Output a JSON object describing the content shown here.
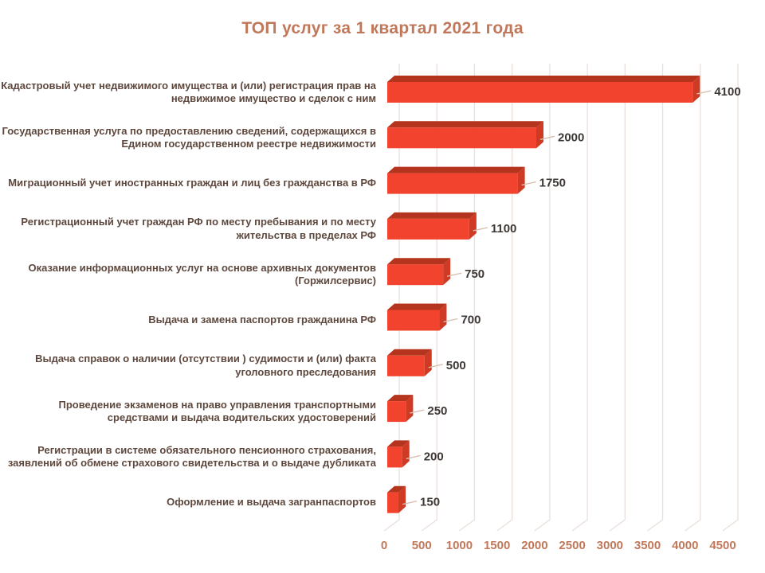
{
  "title": "ТОП услуг за 1 квартал 2021 года",
  "colors": {
    "background": "#ffffff",
    "title": "#c1785a",
    "category_label": "#5e483e",
    "value_label": "#3d3835",
    "axis_label": "#c1785a",
    "gridline": "#e9e0dc",
    "leader_line": "#d8c0b2",
    "bar_front": "#f1432e",
    "bar_top": "#b5341d",
    "bar_side": "#ce3a23"
  },
  "chart_data": {
    "type": "bar",
    "orientation": "horizontal",
    "style": "3d",
    "title": "ТОП услуг за 1 квартал 2021 года",
    "categories": [
      "Кадастровый учет недвижимого имущества и (или) регистрация прав на недвижимое имущество и сделок с ним",
      "Государственная услуга по предоставлению сведений, содержащихся в Едином государственном реестре недвижимости",
      "Миграционный учет иностранных граждан и лиц без гражданства в РФ",
      "Регистрационный учет граждан РФ по месту пребывания и по месту жительства в пределах РФ",
      "Оказание информационных услуг на основе архивных документов (Горжилсервис)",
      "Выдача и замена паспортов гражданина РФ",
      "Выдача справок о наличии (отсутствии ) судимости и (или) факта уголовного преследования",
      "Проведение экзаменов на право управления транспортными средствами и выдача водительских удостоверений",
      "Регистрации в системе обязательного пенсионного страхования, заявлений об обмене страхового свидетельства и о выдаче дубликата",
      "Оформление и выдача загранпаспортов"
    ],
    "values": [
      4100,
      2000,
      1750,
      1100,
      750,
      700,
      500,
      250,
      200,
      150
    ],
    "data_labels": [
      "4100",
      "2000",
      "1750",
      "1100",
      "750",
      "700",
      "500",
      "250",
      "200",
      "150"
    ],
    "xlabel": "",
    "ylabel": "",
    "xlim": [
      0,
      4500
    ],
    "x_ticks": [
      0,
      500,
      1000,
      1500,
      2000,
      2500,
      3000,
      3500,
      4000,
      4500
    ],
    "x_tick_labels": [
      "0",
      "500",
      "1000",
      "1500",
      "2000",
      "2500",
      "3000",
      "3500",
      "4000",
      "4500"
    ],
    "grid": true,
    "legend": "none"
  }
}
